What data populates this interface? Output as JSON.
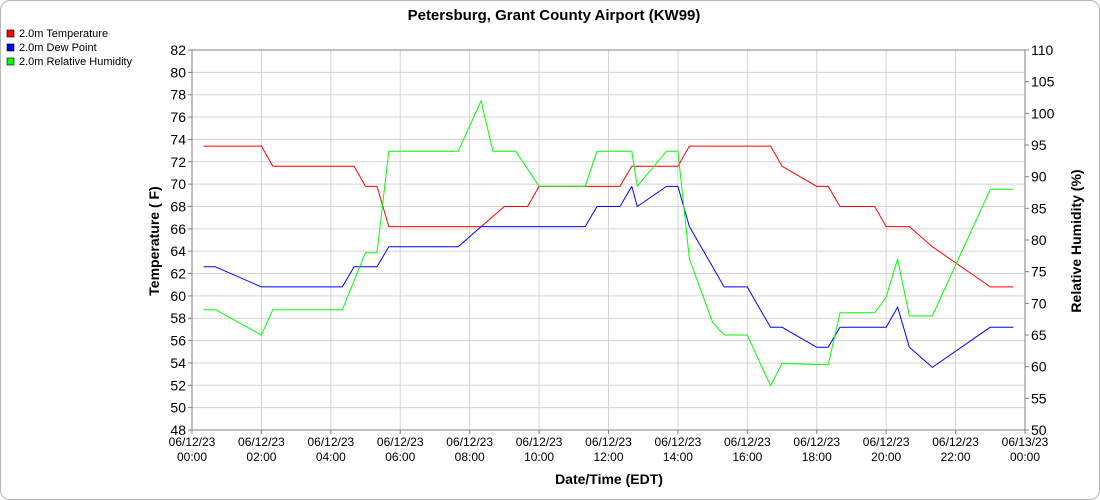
{
  "chart_data": {
    "type": "line",
    "title": "Petersburg, Grant County Airport (KW99)",
    "xlabel": "Date/Time (EDT)",
    "ylabel": "Temperature ( F)",
    "y2label": "Relative Humidity (%)",
    "x_range_hours": [
      0,
      24
    ],
    "ylim": [
      48,
      82
    ],
    "y2lim": [
      50,
      110
    ],
    "grid": true,
    "legend_placement": "top-left",
    "y_ticks": [
      "48",
      "50",
      "52",
      "54",
      "56",
      "58",
      "60",
      "62",
      "64",
      "66",
      "68",
      "70",
      "72",
      "74",
      "76",
      "78",
      "80",
      "82"
    ],
    "y2_ticks": [
      "50",
      "55",
      "60",
      "65",
      "70",
      "75",
      "80",
      "85",
      "90",
      "95",
      "100",
      "105",
      "110"
    ],
    "x_ticks": [
      {
        "hour": 0,
        "date": "06/12/23",
        "time": "00:00"
      },
      {
        "hour": 2,
        "date": "06/12/23",
        "time": "02:00"
      },
      {
        "hour": 4,
        "date": "06/12/23",
        "time": "04:00"
      },
      {
        "hour": 6,
        "date": "06/12/23",
        "time": "06:00"
      },
      {
        "hour": 8,
        "date": "06/12/23",
        "time": "08:00"
      },
      {
        "hour": 10,
        "date": "06/12/23",
        "time": "10:00"
      },
      {
        "hour": 12,
        "date": "06/12/23",
        "time": "12:00"
      },
      {
        "hour": 14,
        "date": "06/12/23",
        "time": "14:00"
      },
      {
        "hour": 16,
        "date": "06/12/23",
        "time": "16:00"
      },
      {
        "hour": 18,
        "date": "06/12/23",
        "time": "18:00"
      },
      {
        "hour": 20,
        "date": "06/12/23",
        "time": "20:00"
      },
      {
        "hour": 22,
        "date": "06/12/23",
        "time": "22:00"
      },
      {
        "hour": 24,
        "date": "06/13/23",
        "time": "00:00"
      }
    ],
    "series": [
      {
        "name": "2.0m Temperature",
        "color": "#ff0000",
        "axis": "left",
        "points": [
          [
            0.33,
            73.4
          ],
          [
            2.0,
            73.4
          ],
          [
            2.33,
            71.6
          ],
          [
            4.67,
            71.6
          ],
          [
            5.0,
            69.8
          ],
          [
            5.33,
            69.8
          ],
          [
            5.67,
            66.2
          ],
          [
            8.0,
            66.2
          ],
          [
            8.33,
            66.2
          ],
          [
            9.0,
            68.0
          ],
          [
            9.67,
            68.0
          ],
          [
            10.0,
            69.8
          ],
          [
            12.0,
            69.8
          ],
          [
            12.33,
            69.8
          ],
          [
            12.67,
            71.6
          ],
          [
            14.0,
            71.6
          ],
          [
            14.33,
            73.4
          ],
          [
            16.67,
            73.4
          ],
          [
            17.0,
            71.6
          ],
          [
            18.0,
            69.8
          ],
          [
            18.33,
            69.8
          ],
          [
            18.67,
            68.0
          ],
          [
            19.67,
            68.0
          ],
          [
            20.0,
            66.2
          ],
          [
            20.67,
            66.2
          ],
          [
            21.33,
            64.4
          ],
          [
            23.0,
            60.8
          ],
          [
            23.67,
            60.8
          ]
        ]
      },
      {
        "name": "2.0m Dew Point",
        "color": "#0000ff",
        "axis": "left",
        "points": [
          [
            0.33,
            62.6
          ],
          [
            0.67,
            62.6
          ],
          [
            2.0,
            60.8
          ],
          [
            4.33,
            60.8
          ],
          [
            4.67,
            62.6
          ],
          [
            5.33,
            62.6
          ],
          [
            5.67,
            64.4
          ],
          [
            7.67,
            64.4
          ],
          [
            8.33,
            66.2
          ],
          [
            11.33,
            66.2
          ],
          [
            11.67,
            68.0
          ],
          [
            12.33,
            68.0
          ],
          [
            12.67,
            69.8
          ],
          [
            12.83,
            68.0
          ],
          [
            13.67,
            69.8
          ],
          [
            14.0,
            69.8
          ],
          [
            14.33,
            66.2
          ],
          [
            15.0,
            62.6
          ],
          [
            15.33,
            60.8
          ],
          [
            16.0,
            60.8
          ],
          [
            16.33,
            59.0
          ],
          [
            16.67,
            57.2
          ],
          [
            17.0,
            57.2
          ],
          [
            18.0,
            55.4
          ],
          [
            18.33,
            55.4
          ],
          [
            18.67,
            57.2
          ],
          [
            20.0,
            57.2
          ],
          [
            20.33,
            59.0
          ],
          [
            20.67,
            55.4
          ],
          [
            21.33,
            53.6
          ],
          [
            23.0,
            57.2
          ],
          [
            23.67,
            57.2
          ]
        ]
      },
      {
        "name": "2.0m Relative Humidity",
        "color": "#00ff00",
        "axis": "right",
        "points": [
          [
            0.33,
            69
          ],
          [
            0.67,
            69
          ],
          [
            2.0,
            65
          ],
          [
            2.33,
            69
          ],
          [
            4.33,
            69
          ],
          [
            5.0,
            78
          ],
          [
            5.33,
            78
          ],
          [
            5.67,
            94
          ],
          [
            7.67,
            94
          ],
          [
            8.0,
            98
          ],
          [
            8.33,
            102
          ],
          [
            8.67,
            94
          ],
          [
            9.33,
            94
          ],
          [
            10.0,
            88.5
          ],
          [
            11.33,
            88.5
          ],
          [
            11.67,
            94
          ],
          [
            12.67,
            94
          ],
          [
            12.83,
            88.5
          ],
          [
            13.67,
            94
          ],
          [
            14.0,
            94
          ],
          [
            14.33,
            77
          ],
          [
            15.0,
            67
          ],
          [
            15.33,
            65
          ],
          [
            16.0,
            65
          ],
          [
            16.33,
            61
          ],
          [
            16.67,
            57
          ],
          [
            17.0,
            60.5
          ],
          [
            18.33,
            60.3
          ],
          [
            18.67,
            68.5
          ],
          [
            19.67,
            68.5
          ],
          [
            20.0,
            71
          ],
          [
            20.33,
            77
          ],
          [
            20.67,
            68
          ],
          [
            21.33,
            68
          ],
          [
            23.0,
            88
          ],
          [
            23.67,
            88
          ]
        ]
      }
    ]
  }
}
